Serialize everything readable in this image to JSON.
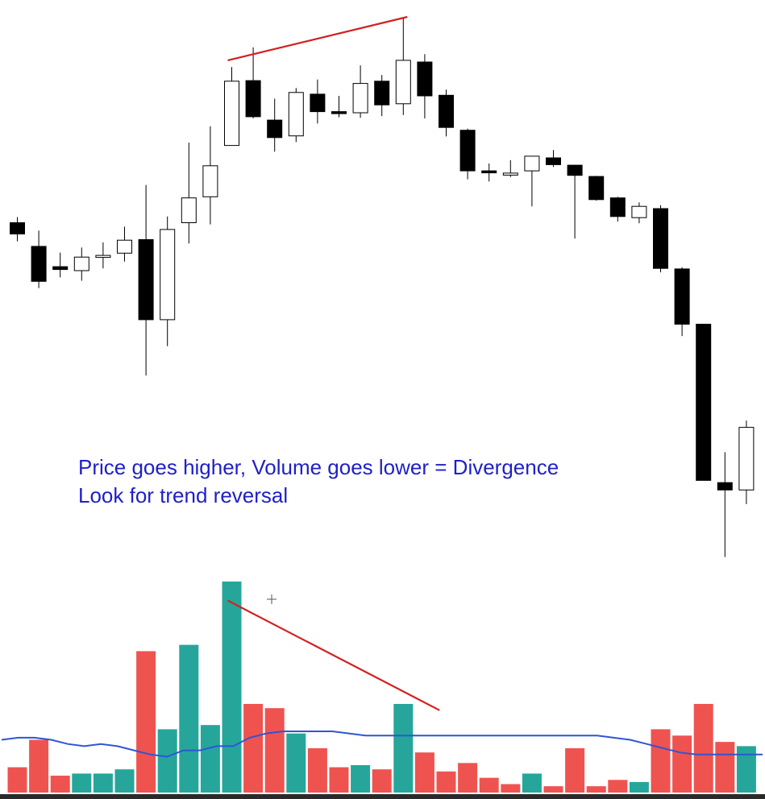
{
  "annotation": {
    "line1": "Price goes higher, Volume goes lower = Divergence",
    "line2": "Look for trend reversal"
  },
  "colors": {
    "bull_candle_fill": "#ffffff",
    "bear_candle_fill": "#000000",
    "candle_outline": "#000000",
    "volume_up": "#26a69a",
    "volume_down": "#ef5350",
    "volume_ma": "#2f55d4",
    "trendline": "#d42020",
    "annotation_text": "#1f1fc8"
  },
  "chart_data": {
    "type": "candlestick",
    "title": "",
    "xlabel": "",
    "ylabel": "",
    "price_range": [
      0,
      100
    ],
    "candles": [
      {
        "o": 63.5,
        "h": 64.5,
        "l": 60.2,
        "c": 61.5
      },
      {
        "o": 59.3,
        "h": 62.1,
        "l": 51.9,
        "c": 53.1
      },
      {
        "o": 55.7,
        "h": 58.2,
        "l": 53.8,
        "c": 55.2
      },
      {
        "o": 55.0,
        "h": 59.1,
        "l": 53.2,
        "c": 57.4
      },
      {
        "o": 57.5,
        "h": 60.0,
        "l": 55.4,
        "c": 57.7
      },
      {
        "o": 58.1,
        "h": 62.8,
        "l": 56.6,
        "c": 60.4
      },
      {
        "o": 60.5,
        "h": 70.2,
        "l": 36.4,
        "c": 46.3
      },
      {
        "o": 46.3,
        "h": 64.6,
        "l": 41.6,
        "c": 62.3
      },
      {
        "o": 63.5,
        "h": 77.7,
        "l": 59.8,
        "c": 67.9
      },
      {
        "o": 68.1,
        "h": 80.6,
        "l": 63.2,
        "c": 73.6
      },
      {
        "o": 77.2,
        "h": 91.1,
        "l": 77.2,
        "c": 88.6
      },
      {
        "o": 88.7,
        "h": 94.6,
        "l": 82.0,
        "c": 82.3
      },
      {
        "o": 81.7,
        "h": 85.5,
        "l": 76.1,
        "c": 78.6
      },
      {
        "o": 78.9,
        "h": 87.4,
        "l": 77.8,
        "c": 86.6
      },
      {
        "o": 86.3,
        "h": 88.9,
        "l": 81.1,
        "c": 83.2
      },
      {
        "o": 83.2,
        "h": 86.0,
        "l": 82.2,
        "c": 83.1
      },
      {
        "o": 83.0,
        "h": 91.4,
        "l": 82.1,
        "c": 88.2
      },
      {
        "o": 88.6,
        "h": 89.7,
        "l": 82.4,
        "c": 84.4
      },
      {
        "o": 84.6,
        "h": 100.0,
        "l": 82.6,
        "c": 92.3
      },
      {
        "o": 92.0,
        "h": 93.4,
        "l": 82.0,
        "c": 86.0
      },
      {
        "o": 86.1,
        "h": 87.1,
        "l": 78.8,
        "c": 80.4
      },
      {
        "o": 79.9,
        "h": 80.2,
        "l": 71.2,
        "c": 72.7
      },
      {
        "o": 72.7,
        "h": 74.0,
        "l": 70.8,
        "c": 72.4
      },
      {
        "o": 72.3,
        "h": 74.6,
        "l": 71.6,
        "c": 72.3
      },
      {
        "o": 72.7,
        "h": 75.3,
        "l": 66.4,
        "c": 75.3
      },
      {
        "o": 75.0,
        "h": 76.4,
        "l": 73.4,
        "c": 73.8
      },
      {
        "o": 73.7,
        "h": 73.7,
        "l": 60.7,
        "c": 71.9
      },
      {
        "o": 71.7,
        "h": 71.8,
        "l": 67.4,
        "c": 67.6
      },
      {
        "o": 67.9,
        "h": 68.1,
        "l": 63.7,
        "c": 64.6
      },
      {
        "o": 64.4,
        "h": 67.1,
        "l": 63.4,
        "c": 66.4
      },
      {
        "o": 66.0,
        "h": 66.6,
        "l": 54.7,
        "c": 55.4
      },
      {
        "o": 55.3,
        "h": 55.6,
        "l": 43.4,
        "c": 45.5
      },
      {
        "o": 45.5,
        "h": 45.5,
        "l": 17.8,
        "c": 17.8
      },
      {
        "o": 17.4,
        "h": 22.8,
        "l": 4.2,
        "c": 16.1
      },
      {
        "o": 16.1,
        "h": 28.4,
        "l": 13.6,
        "c": 27.2
      }
    ],
    "volume": {
      "range": [
        0,
        100
      ],
      "values": [
        12,
        25,
        8,
        9,
        9,
        11,
        67,
        30,
        70,
        32,
        100,
        42,
        40,
        28,
        21,
        12,
        13,
        11,
        42,
        19,
        10,
        14,
        7,
        4,
        9,
        3,
        21,
        3,
        6,
        5,
        30,
        27,
        42,
        24,
        22
      ],
      "directions": [
        "down",
        "down",
        "down",
        "up",
        "up",
        "up",
        "down",
        "up",
        "up",
        "up",
        "up",
        "down",
        "down",
        "up",
        "down",
        "down",
        "up",
        "down",
        "up",
        "down",
        "down",
        "down",
        "down",
        "down",
        "up",
        "down",
        "down",
        "down",
        "down",
        "up",
        "down",
        "down",
        "down",
        "down",
        "up"
      ],
      "ma_series": {
        "values": [
          25,
          26,
          26,
          25,
          23,
          22,
          23,
          22,
          20,
          18,
          17,
          20,
          20,
          22,
          22,
          26,
          28,
          29,
          29,
          29,
          29,
          28,
          27,
          27,
          27,
          27,
          27,
          27,
          27,
          27,
          27,
          27,
          27,
          27,
          27,
          27,
          27,
          26,
          25,
          23,
          21,
          19,
          18,
          18,
          18,
          18,
          18
        ],
        "anchor": "sampled"
      }
    },
    "trendlines": [
      {
        "name": "price-divergence-line",
        "from": {
          "candle": 10,
          "price": 92.3
        },
        "to": {
          "candle": 18,
          "price": 100.0
        }
      },
      {
        "name": "volume-divergence-line",
        "from": {
          "candle": 10,
          "volume": 91
        },
        "to": {
          "candle": 19.5,
          "volume": 39
        }
      }
    ],
    "grid": false,
    "legend": "none"
  }
}
